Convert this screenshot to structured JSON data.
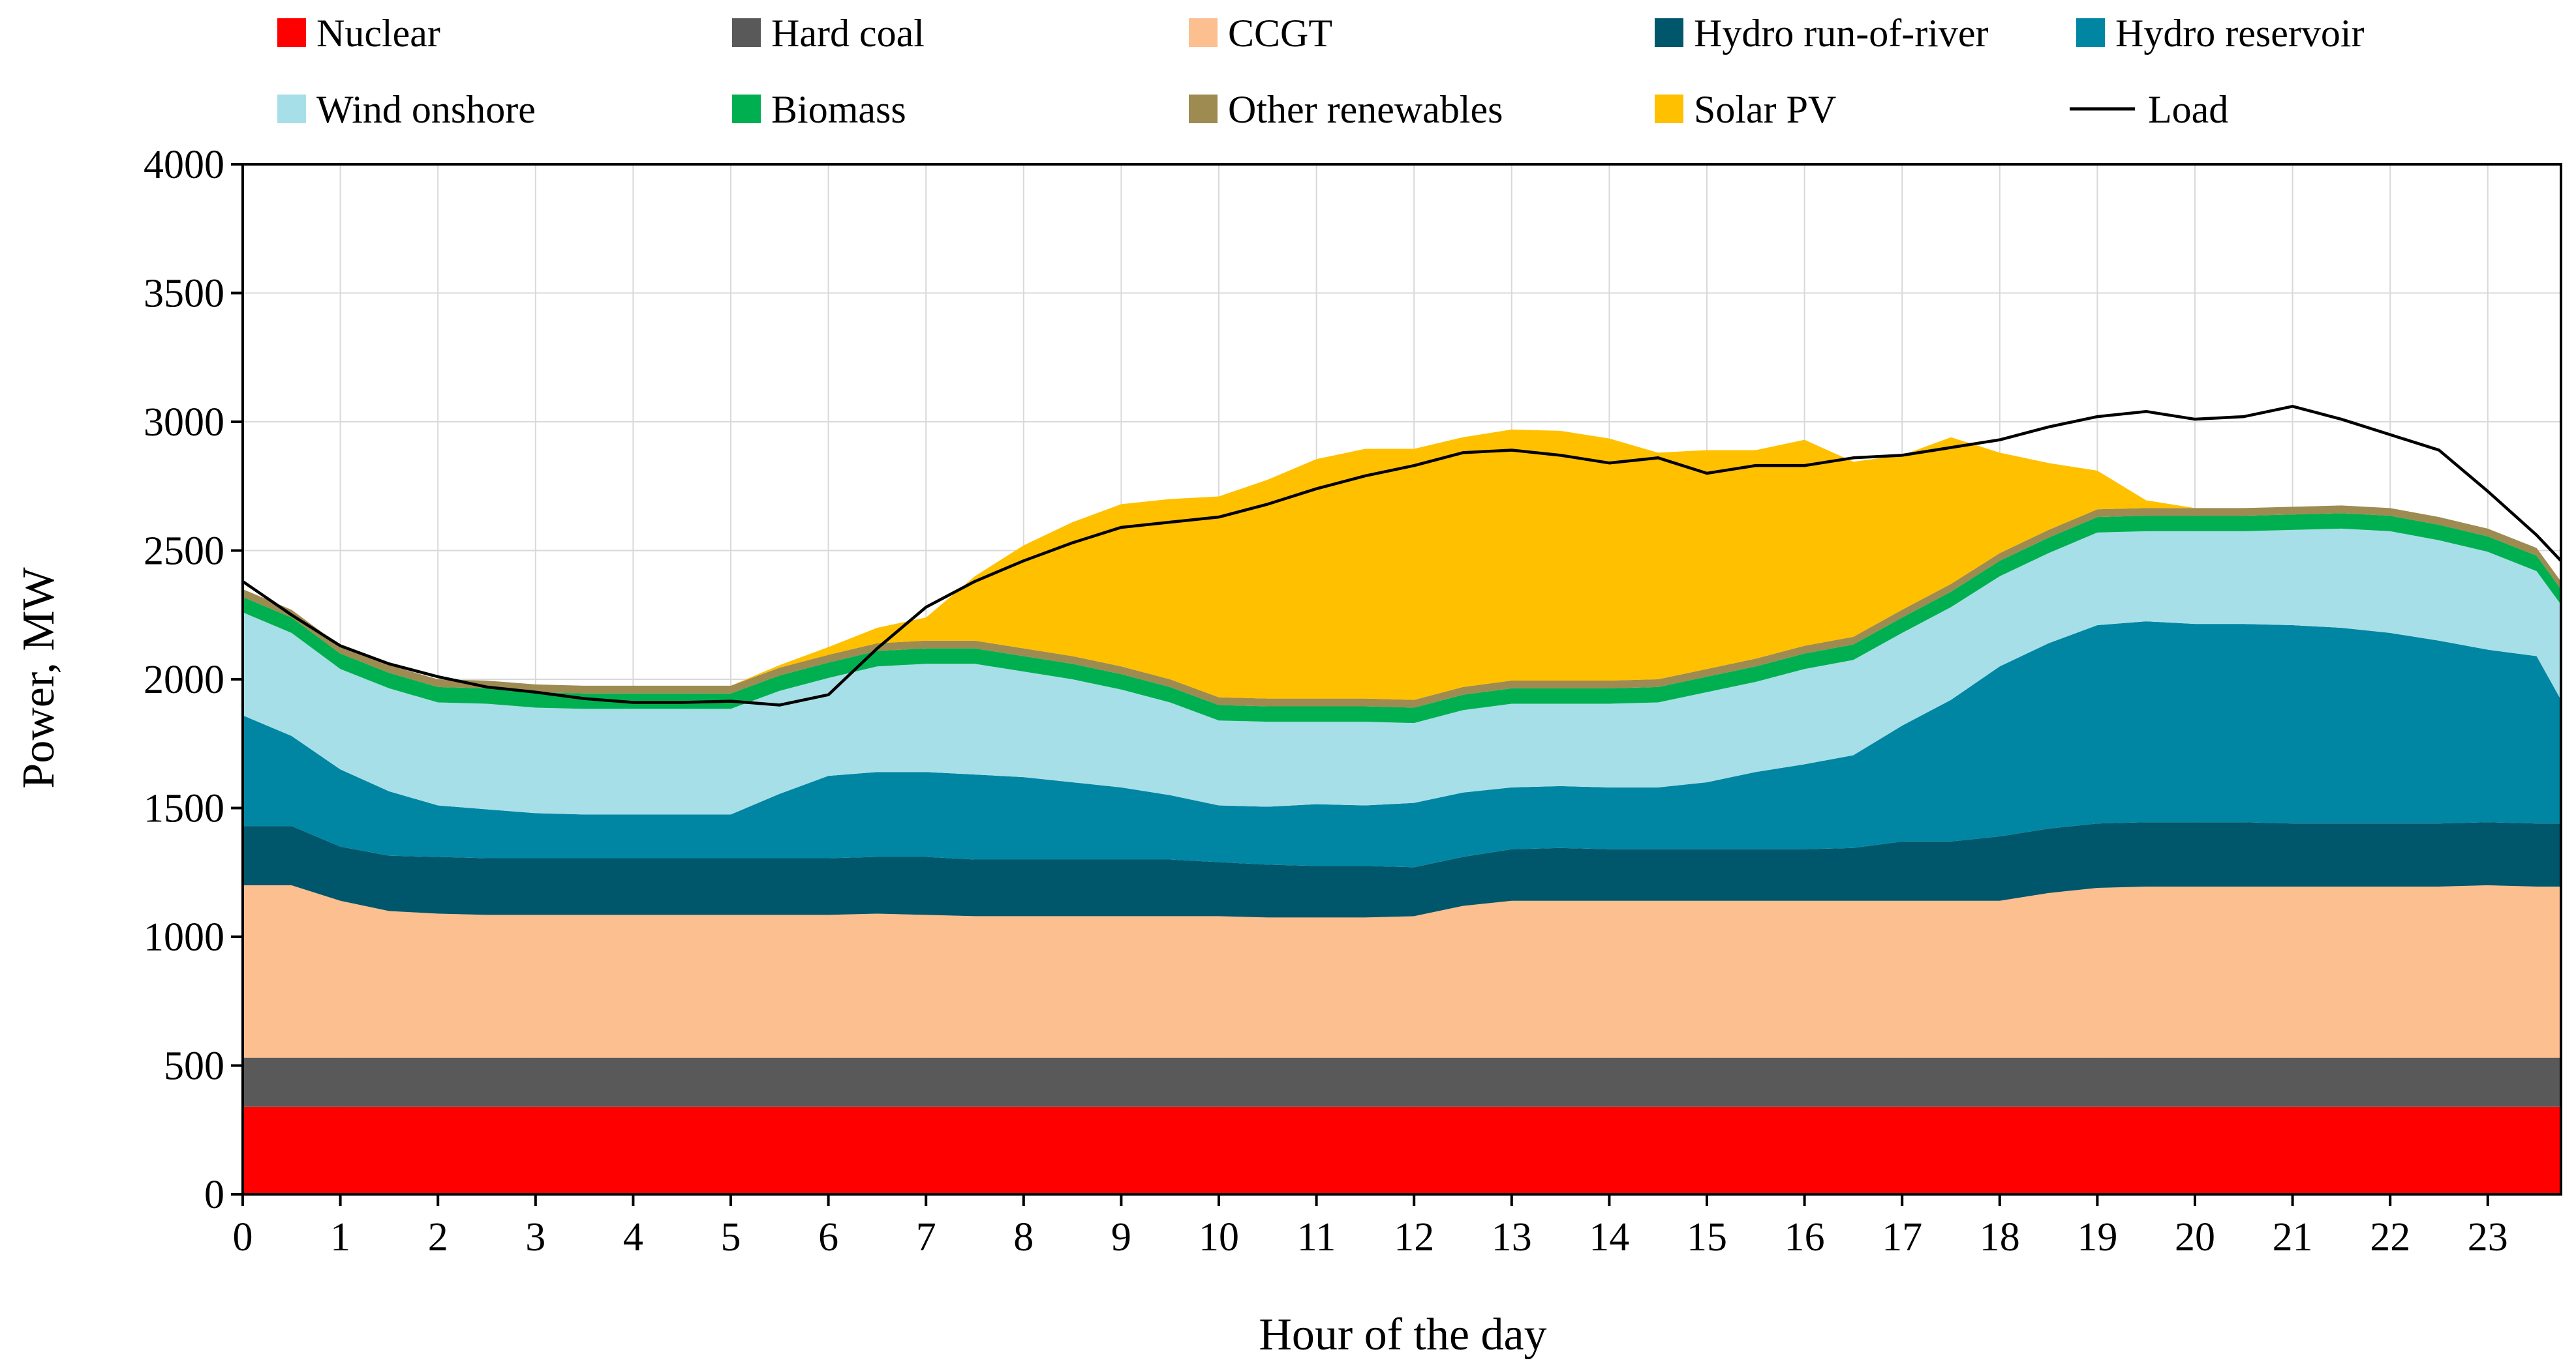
{
  "chart_data": {
    "type": "area",
    "stacked": true,
    "title": "",
    "xlabel": "Hour of the day",
    "ylabel": "Power, MW",
    "xlim": [
      0,
      23.75
    ],
    "ylim": [
      0,
      4000
    ],
    "x_ticks": [
      0,
      1,
      2,
      3,
      4,
      5,
      6,
      7,
      8,
      9,
      10,
      11,
      12,
      13,
      14,
      15,
      16,
      17,
      18,
      19,
      20,
      21,
      22,
      23
    ],
    "y_ticks": [
      0,
      500,
      1000,
      1500,
      2000,
      2500,
      3000,
      3500,
      4000
    ],
    "grid": true,
    "legend_position": "top",
    "x": [
      0,
      0.5,
      1,
      1.5,
      2,
      2.5,
      3,
      3.5,
      4,
      4.5,
      5,
      5.5,
      6,
      6.5,
      7,
      7.5,
      8,
      8.5,
      9,
      9.5,
      10,
      10.5,
      11,
      11.5,
      12,
      12.5,
      13,
      13.5,
      14,
      14.5,
      15,
      15.5,
      16,
      16.5,
      17,
      17.5,
      18,
      18.5,
      19,
      19.5,
      20,
      20.5,
      21,
      21.5,
      22,
      22.5,
      23,
      23.5,
      23.75
    ],
    "series": [
      {
        "name": "Nuclear",
        "color": "#FF0000",
        "values": [
          340,
          340,
          340,
          340,
          340,
          340,
          340,
          340,
          340,
          340,
          340,
          340,
          340,
          340,
          340,
          340,
          340,
          340,
          340,
          340,
          340,
          340,
          340,
          340,
          340,
          340,
          340,
          340,
          340,
          340,
          340,
          340,
          340,
          340,
          340,
          340,
          340,
          340,
          340,
          340,
          340,
          340,
          340,
          340,
          340,
          340,
          340,
          340,
          340
        ]
      },
      {
        "name": "Hard coal",
        "color": "#595959",
        "values": [
          190,
          190,
          190,
          190,
          190,
          190,
          190,
          190,
          190,
          190,
          190,
          190,
          190,
          190,
          190,
          190,
          190,
          190,
          190,
          190,
          190,
          190,
          190,
          190,
          190,
          190,
          190,
          190,
          190,
          190,
          190,
          190,
          190,
          190,
          190,
          190,
          190,
          190,
          190,
          190,
          190,
          190,
          190,
          190,
          190,
          190,
          190,
          190,
          190
        ]
      },
      {
        "name": "CCGT",
        "color": "#FCBF8F",
        "values": [
          670,
          670,
          610,
          570,
          560,
          555,
          555,
          555,
          555,
          555,
          555,
          555,
          555,
          560,
          555,
          550,
          550,
          550,
          550,
          550,
          550,
          545,
          545,
          545,
          550,
          590,
          610,
          610,
          610,
          610,
          610,
          610,
          610,
          610,
          610,
          610,
          610,
          640,
          660,
          665,
          665,
          665,
          665,
          665,
          665,
          665,
          670,
          665,
          665
        ]
      },
      {
        "name": "Hydro run-of-river",
        "color": "#00566A",
        "values": [
          230,
          230,
          210,
          215,
          220,
          220,
          220,
          220,
          220,
          220,
          220,
          220,
          220,
          220,
          225,
          220,
          220,
          220,
          220,
          220,
          210,
          205,
          200,
          200,
          190,
          190,
          200,
          205,
          200,
          200,
          200,
          200,
          200,
          205,
          230,
          230,
          250,
          250,
          250,
          250,
          250,
          250,
          245,
          245,
          245,
          245,
          245,
          245,
          245
        ]
      },
      {
        "name": "Hydro reservoir",
        "color": "#0086A3",
        "values": [
          430,
          350,
          300,
          250,
          200,
          190,
          175,
          170,
          170,
          170,
          170,
          250,
          320,
          330,
          330,
          330,
          320,
          300,
          280,
          250,
          220,
          225,
          240,
          235,
          250,
          250,
          240,
          240,
          240,
          240,
          260,
          300,
          330,
          360,
          450,
          550,
          660,
          720,
          770,
          780,
          770,
          770,
          770,
          760,
          740,
          710,
          670,
          650,
          480
        ]
      },
      {
        "name": "Wind onshore",
        "color": "#A7DFE8",
        "values": [
          400,
          400,
          390,
          400,
          400,
          410,
          410,
          410,
          410,
          410,
          410,
          400,
          380,
          410,
          420,
          430,
          410,
          400,
          380,
          360,
          330,
          330,
          320,
          325,
          310,
          320,
          325,
          320,
          325,
          330,
          350,
          350,
          370,
          370,
          360,
          360,
          350,
          350,
          360,
          350,
          360,
          360,
          370,
          385,
          395,
          390,
          380,
          330,
          370
        ]
      },
      {
        "name": "Biomass",
        "color": "#00B050",
        "values": [
          60,
          60,
          60,
          60,
          60,
          60,
          60,
          60,
          60,
          60,
          60,
          60,
          60,
          60,
          60,
          60,
          60,
          60,
          60,
          60,
          60,
          60,
          60,
          60,
          60,
          60,
          60,
          60,
          60,
          60,
          60,
          60,
          60,
          60,
          60,
          60,
          60,
          60,
          60,
          60,
          60,
          60,
          60,
          60,
          60,
          60,
          60,
          60,
          60
        ]
      },
      {
        "name": "Other renewables",
        "color": "#9E8B51",
        "values": [
          30,
          30,
          30,
          30,
          30,
          30,
          30,
          30,
          30,
          30,
          30,
          30,
          30,
          30,
          30,
          30,
          30,
          30,
          30,
          30,
          30,
          30,
          30,
          30,
          30,
          30,
          30,
          30,
          30,
          30,
          30,
          30,
          30,
          30,
          30,
          30,
          30,
          30,
          30,
          30,
          30,
          30,
          30,
          30,
          30,
          30,
          30,
          30,
          30
        ]
      },
      {
        "name": "Solar PV",
        "color": "#FFC000",
        "values": [
          0,
          0,
          0,
          0,
          0,
          0,
          0,
          0,
          0,
          0,
          0,
          10,
          30,
          60,
          90,
          250,
          400,
          520,
          630,
          700,
          780,
          850,
          930,
          970,
          975,
          970,
          975,
          970,
          940,
          880,
          850,
          810,
          800,
          680,
          600,
          570,
          390,
          260,
          150,
          30,
          0,
          0,
          0,
          0,
          0,
          0,
          0,
          0,
          0
        ]
      }
    ],
    "load": {
      "name": "Load",
      "color": "#000000",
      "values": [
        2380,
        2250,
        2130,
        2060,
        2010,
        1970,
        1950,
        1925,
        1910,
        1910,
        1915,
        1900,
        1940,
        2120,
        2280,
        2380,
        2460,
        2530,
        2590,
        2610,
        2630,
        2680,
        2740,
        2790,
        2830,
        2880,
        2890,
        2870,
        2840,
        2860,
        2800,
        2830,
        2830,
        2860,
        2870,
        2900,
        2930,
        2980,
        3020,
        3040,
        3010,
        3020,
        3060,
        3010,
        2950,
        2890,
        2730,
        2560,
        2460
      ]
    }
  }
}
